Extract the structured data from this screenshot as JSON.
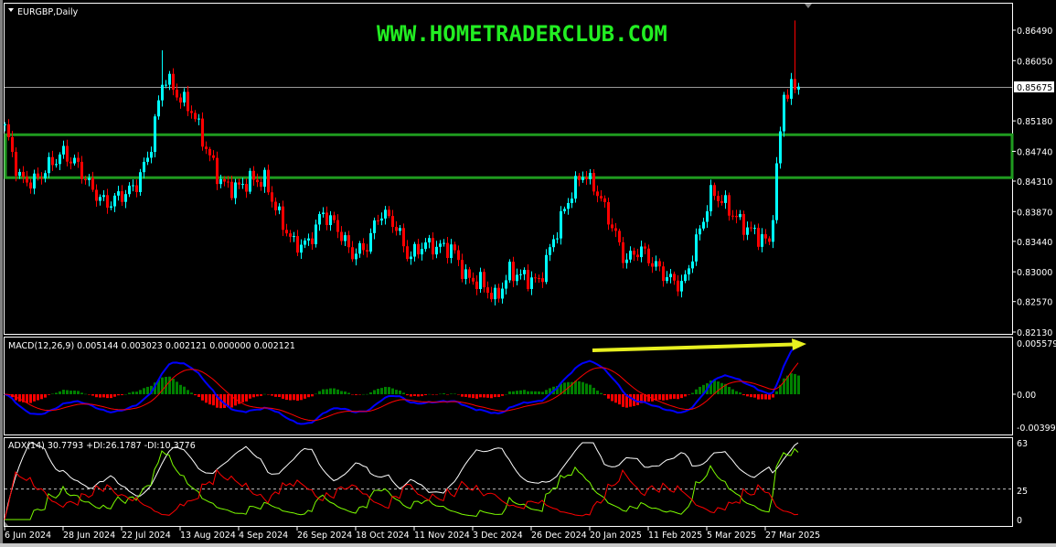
{
  "window": {
    "symbol_title": "EURGBP,Daily"
  },
  "watermark": {
    "text": "WWW.HOMETRADERCLUB.COM",
    "color": "#22ee22"
  },
  "colors": {
    "bull": "#00ffff",
    "bear": "#ff0000",
    "zone": "#1f9a1f",
    "macd_main": "#0000ff",
    "macd_signal": "#ff0000",
    "hist_pos": "#008000",
    "hist_neg": "#ff0000",
    "adx": "#ffffff",
    "plus_di": "#7cfc00",
    "minus_di": "#ff0000",
    "arrow": "#e8f020"
  },
  "chart_data": [
    {
      "type": "candlestick",
      "title": "EURGBP,Daily",
      "price_axis": {
        "ticks": [
          "0.86490",
          "0.86050",
          "0.85180",
          "0.84740",
          "0.84310",
          "0.83870",
          "0.83440",
          "0.83000",
          "0.82570",
          "0.82130"
        ],
        "ylim": [
          0.8213,
          0.8649
        ]
      },
      "current_price": "0.85675",
      "resistance_zone": {
        "top": 0.8498,
        "bottom": 0.8436
      },
      "date_ticks": [
        "6 Jun 2024",
        "28 Jun 2024",
        "22 Jul 2024",
        "13 Aug 2024",
        "4 Sep 2024",
        "26 Sep 2024",
        "18 Oct 2024",
        "11 Nov 2024",
        "3 Dec 2024",
        "26 Dec 2024",
        "20 Jan 2025",
        "11 Feb 2025",
        "5 Mar 2025",
        "27 Mar 2025"
      ],
      "approx_closes": [
        0.8508,
        0.8435,
        0.8429,
        0.8452,
        0.8472,
        0.8455,
        0.842,
        0.8397,
        0.841,
        0.8422,
        0.847,
        0.8585,
        0.8554,
        0.8532,
        0.8475,
        0.8428,
        0.842,
        0.8433,
        0.8432,
        0.838,
        0.834,
        0.834,
        0.8386,
        0.8365,
        0.8326,
        0.8334,
        0.8387,
        0.837,
        0.832,
        0.834,
        0.8336,
        0.8334,
        0.829,
        0.8285,
        0.826,
        0.8301,
        0.8292,
        0.8285,
        0.8346,
        0.8402,
        0.8444,
        0.8418,
        0.837,
        0.8315,
        0.8334,
        0.831,
        0.829,
        0.828,
        0.835,
        0.8417,
        0.8395,
        0.837,
        0.8355,
        0.834,
        0.856,
        0.85675
      ]
    },
    {
      "type": "line",
      "title": "MACD(12,26,9) 0.005144 0.003023 0.002121 0.000000 0.002121",
      "axis_ticks": [
        "0.005579",
        "0.00",
        "-0.003993"
      ],
      "ylim": [
        -0.003993,
        0.005579
      ]
    },
    {
      "type": "line",
      "title": "ADX(14) 30.7793 +DI:26.1787 -DI:10.3776",
      "axis_ticks": [
        "63",
        "25",
        "0"
      ],
      "ylim": [
        0,
        63
      ],
      "level": 25
    }
  ]
}
